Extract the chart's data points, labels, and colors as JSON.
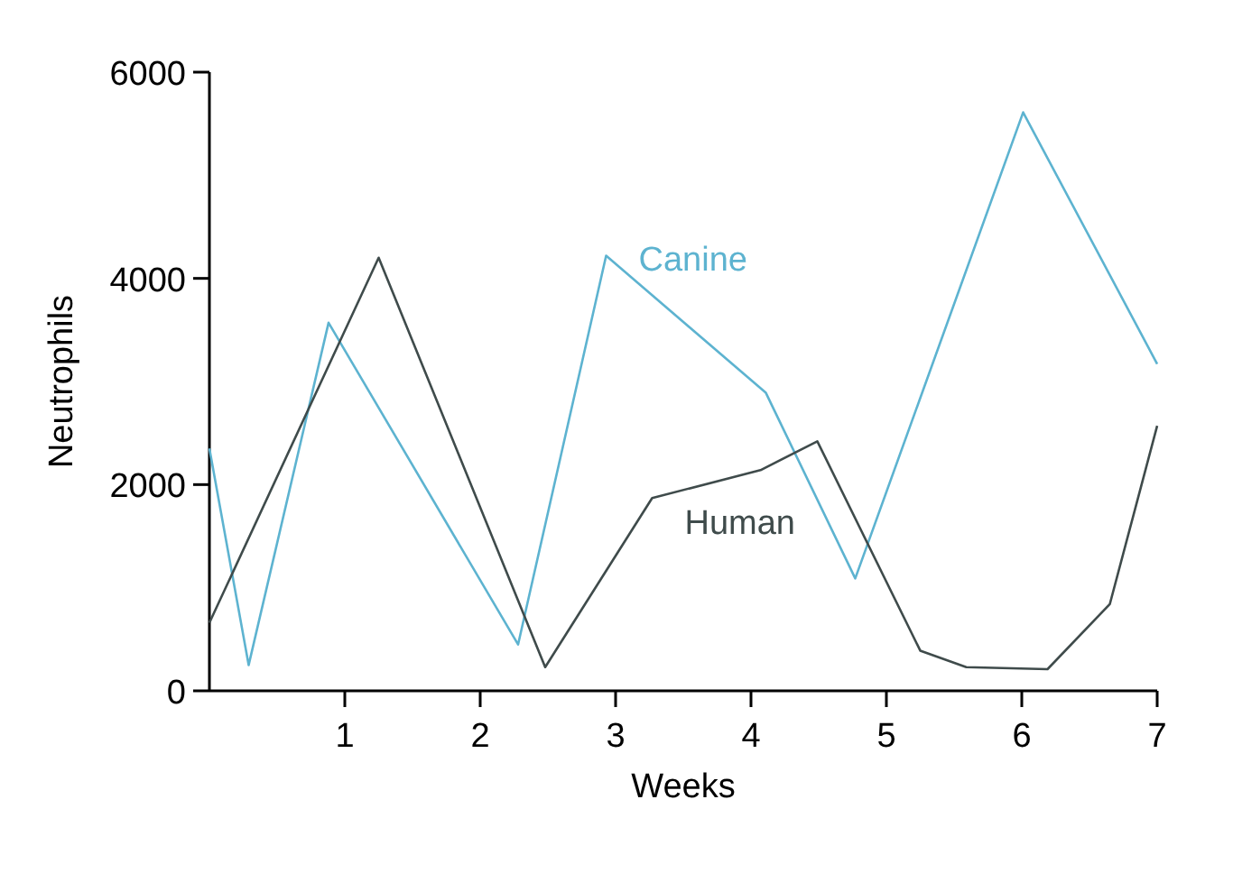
{
  "chart_data": {
    "type": "line",
    "xlabel": "Weeks",
    "ylabel": "Neutrophils",
    "xlim": [
      0,
      7
    ],
    "ylim": [
      0,
      6000
    ],
    "xticks": [
      1,
      2,
      3,
      4,
      5,
      6,
      7
    ],
    "yticks": [
      0,
      2000,
      4000,
      6000
    ],
    "grid": false,
    "marker": "none",
    "line_style": "solid",
    "series": [
      {
        "name": "Canine",
        "color": "#5db3d0",
        "x": [
          0,
          0.29,
          0.88,
          2.28,
          2.93,
          4.11,
          4.77,
          6.01,
          7
        ],
        "values": [
          2350,
          250,
          3570,
          450,
          4220,
          2890,
          1090,
          5610,
          3170
        ]
      },
      {
        "name": "Human",
        "color": "#3f4b4b",
        "x": [
          0,
          1.25,
          2.48,
          3.27,
          4.07,
          4.49,
          5.25,
          5.59,
          6.19,
          6.65,
          7
        ],
        "values": [
          660,
          4200,
          230,
          1870,
          2140,
          2420,
          390,
          230,
          210,
          840,
          2570
        ]
      }
    ]
  }
}
